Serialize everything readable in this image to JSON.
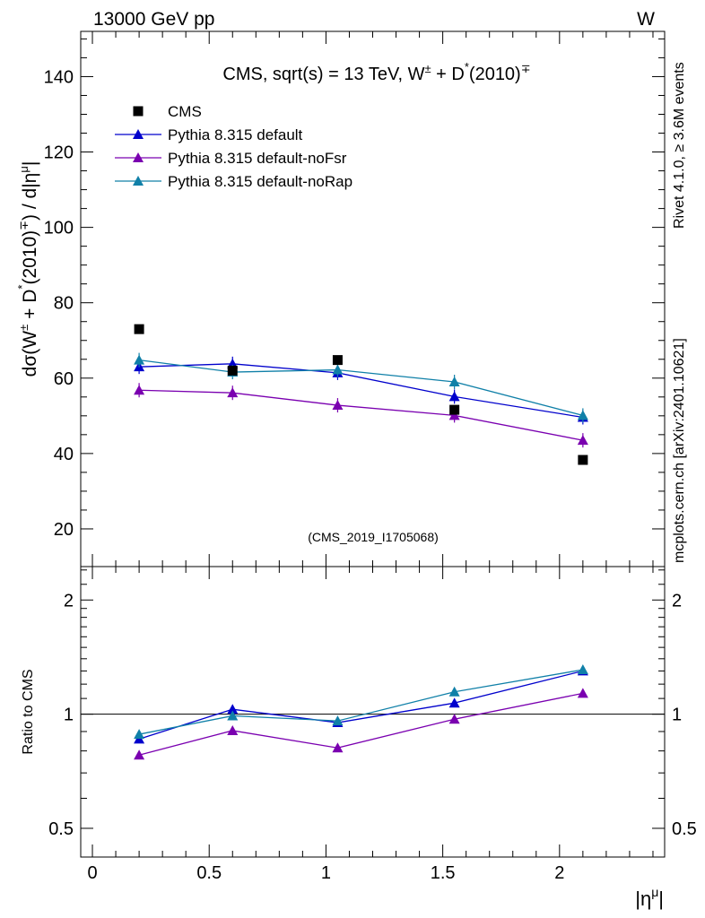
{
  "header": {
    "energy_label": "13000 GeV pp",
    "process_label": "W"
  },
  "side": {
    "rivet_label": "Rivet 4.1.0, ≥ 3.6M events",
    "mcplots_label": "mcplots.cern.ch [arXiv:2401.10621]"
  },
  "colors": {
    "cms": "#000000",
    "default": "#0000cc",
    "noFsr": "#7a00b0",
    "noRap": "#1080a8",
    "watermark": "#999999",
    "side_text": "#808080"
  },
  "chart_data": [
    {
      "type": "scatter",
      "name": "main",
      "title": "CMS, sqrt(s) = 13 TeV, W± + D*(2010)∓",
      "analysis_label": "(CMS_2019_I1705068)",
      "xlabel": "|ημ|",
      "ylabel": "dσ(W± + D*(2010)∓) / d|ημ|",
      "xlim": [
        -0.05,
        2.45
      ],
      "ylim": [
        10,
        152
      ],
      "yticks": [
        20,
        40,
        60,
        80,
        100,
        120,
        140
      ],
      "ytick_labels": [
        "20",
        "40",
        "60",
        "80",
        "100",
        "120",
        "140"
      ],
      "legend_placement": "top-left",
      "x": [
        0.2,
        0.6,
        1.05,
        1.55,
        2.1
      ],
      "series": [
        {
          "name": "CMS",
          "key": "cms",
          "marker": "square",
          "line": false,
          "values": [
            73.0,
            62.0,
            64.8,
            51.6,
            38.3
          ]
        },
        {
          "name": "Pythia 8.315 default",
          "key": "default",
          "marker": "triangle",
          "line": true,
          "values": [
            63.0,
            63.8,
            61.4,
            55.1,
            49.6
          ]
        },
        {
          "name": "Pythia 8.315 default-noFsr",
          "key": "noFsr",
          "marker": "triangle",
          "line": true,
          "values": [
            56.8,
            56.1,
            52.8,
            50.1,
            43.5
          ]
        },
        {
          "name": "Pythia 8.315 default-noRap",
          "key": "noRap",
          "marker": "triangle",
          "line": true,
          "values": [
            64.8,
            61.6,
            62.2,
            59.0,
            50.1
          ]
        }
      ]
    },
    {
      "type": "line",
      "name": "ratio",
      "ylabel": "Ratio to CMS",
      "xlabel": "|ημ|",
      "yscale": "log",
      "xlim": [
        -0.05,
        2.45
      ],
      "ylim": [
        0.42,
        2.45
      ],
      "yticks": [
        0.5,
        1,
        2
      ],
      "ytick_labels": [
        "0.5",
        "1",
        "2"
      ],
      "xticks": [
        0,
        0.5,
        1,
        1.5,
        2
      ],
      "xtick_labels": [
        "0",
        "0.5",
        "1",
        "1.5",
        "2"
      ],
      "reference_line": 1,
      "x": [
        0.2,
        0.6,
        1.05,
        1.55,
        2.1
      ],
      "series": [
        {
          "name": "Pythia 8.315 default",
          "key": "default",
          "values": [
            0.86,
            1.03,
            0.95,
            1.07,
            1.3
          ]
        },
        {
          "name": "Pythia 8.315 default-noFsr",
          "key": "noFsr",
          "values": [
            0.78,
            0.905,
            0.815,
            0.97,
            1.135
          ]
        },
        {
          "name": "Pythia 8.315 default-noRap",
          "key": "noRap",
          "values": [
            0.885,
            0.99,
            0.96,
            1.145,
            1.31
          ]
        }
      ]
    }
  ]
}
